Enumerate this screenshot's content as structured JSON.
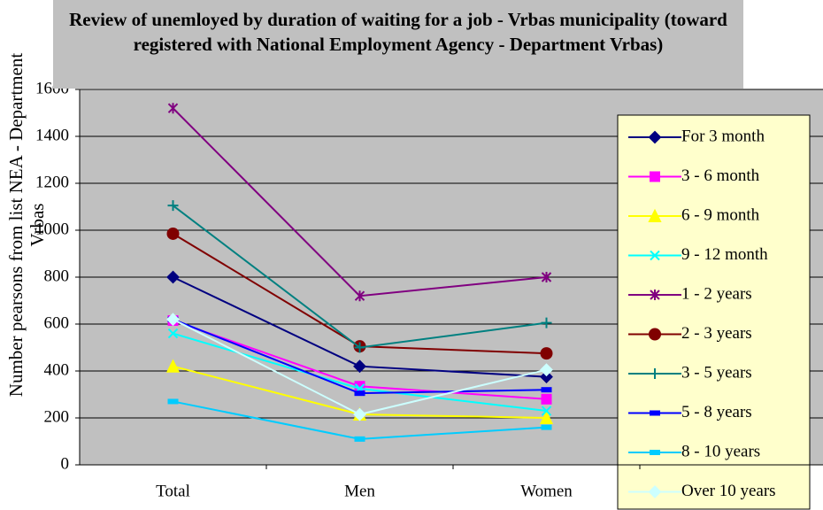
{
  "chart_data": {
    "type": "line",
    "title": "Review of unemloyed by duration of waiting for a job - Vrbas municipality (toward registered with National Employment Agency - Department Vrbas)",
    "y_label": "Number pearsons from list NEA - Department Vrbas",
    "categories": [
      "Total",
      "Men",
      "Women"
    ],
    "ylim": [
      0,
      1600
    ],
    "yticks": [
      0,
      200,
      400,
      600,
      800,
      1000,
      1200,
      1400,
      1600
    ],
    "grid": true,
    "series": [
      {
        "name": "For 3 month",
        "color": "#000080",
        "marker": "diamond",
        "values": [
          800,
          420,
          375
        ]
      },
      {
        "name": "3 - 6 month",
        "color": "#ff00ff",
        "marker": "square",
        "values": [
          615,
          335,
          280
        ]
      },
      {
        "name": "6 - 9 month",
        "color": "#ffff00",
        "marker": "triangle",
        "values": [
          420,
          215,
          200
        ]
      },
      {
        "name": "9 - 12 month",
        "color": "#00ffff",
        "marker": "x",
        "values": [
          560,
          325,
          230
        ]
      },
      {
        "name": "1 - 2 years",
        "color": "#800080",
        "marker": "star",
        "values": [
          1520,
          720,
          800
        ]
      },
      {
        "name": "2 - 3 years",
        "color": "#800000",
        "marker": "circle",
        "values": [
          985,
          505,
          475
        ]
      },
      {
        "name": "3 - 5 years",
        "color": "#008080",
        "marker": "plus",
        "values": [
          1105,
          500,
          605
        ]
      },
      {
        "name": "5 - 8 years",
        "color": "#0000ff",
        "marker": "dash",
        "values": [
          620,
          305,
          320
        ]
      },
      {
        "name": "8 - 10 years",
        "color": "#00ccff",
        "marker": "dash",
        "values": [
          270,
          110,
          160
        ]
      },
      {
        "name": "Over 10 years",
        "color": "#ccffff",
        "marker": "diamond",
        "values": [
          620,
          215,
          405
        ]
      }
    ]
  }
}
